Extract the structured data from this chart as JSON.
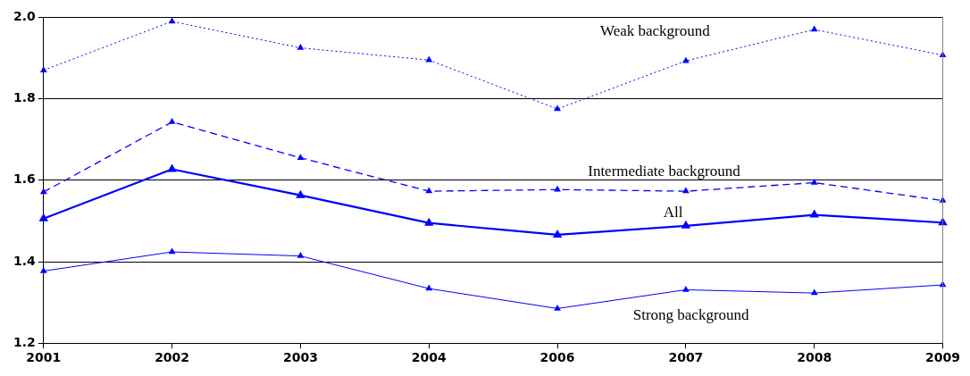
{
  "chart_data": {
    "type": "line",
    "categories": [
      "2001",
      "2002",
      "2003",
      "2004",
      "2006",
      "2007",
      "2008",
      "2009"
    ],
    "series": [
      {
        "name": "Weak background",
        "color": "#0000ff",
        "line_style": "dotted",
        "values": [
          1.87,
          1.99,
          1.925,
          1.895,
          1.775,
          1.893,
          1.97,
          1.907
        ]
      },
      {
        "name": "Intermediate background",
        "color": "#0000ff",
        "line_style": "dashed",
        "values": [
          1.571,
          1.743,
          1.655,
          1.573,
          1.577,
          1.573,
          1.594,
          1.55
        ]
      },
      {
        "name": "All",
        "color": "#0000ff",
        "line_style": "solid",
        "values": [
          1.506,
          1.627,
          1.563,
          1.495,
          1.466,
          1.488,
          1.515,
          1.496
        ]
      },
      {
        "name": "Strong background",
        "color": "#0000ff",
        "line_style": "solid",
        "values": [
          1.377,
          1.424,
          1.414,
          1.334,
          1.285,
          1.331,
          1.323,
          1.343
        ]
      }
    ],
    "ylim": [
      1.2,
      2.0
    ],
    "yticks": [
      {
        "value": 1.2,
        "label": "1.2"
      },
      {
        "value": 1.4,
        "label": "1.4"
      },
      {
        "value": 1.6,
        "label": "1.6"
      },
      {
        "value": 1.8,
        "label": "1.8"
      },
      {
        "value": 2.0,
        "label": "2.0"
      }
    ],
    "grid": "y",
    "legend": false,
    "marker": "triangle"
  }
}
